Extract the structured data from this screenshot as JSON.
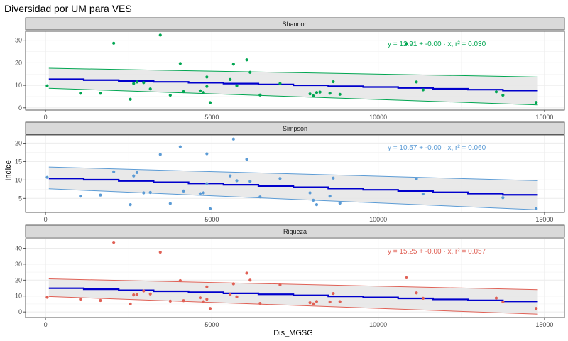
{
  "chart_data": {
    "type": "scatter",
    "title": "Diversidad por UM para VES",
    "xlabel": "Dis_MGSG",
    "ylabel": "Indice",
    "xlim": [
      -600,
      15600
    ],
    "x_ticks": [
      0,
      5000,
      10000,
      15000
    ],
    "x_tick_labels": [
      "0",
      "5000",
      "10000",
      "15000"
    ],
    "grid": true,
    "colors": {
      "fit_line": "#0000cc",
      "ribbon": "#e5e5e5",
      "strip_bg": "#d9d9d9",
      "panel_border": "#333333",
      "grid": "#ebebeb"
    },
    "panels": [
      {
        "name": "Shannon",
        "color": "#00a651",
        "ylim": [
          -1,
          34
        ],
        "y_ticks": [
          0,
          10,
          20,
          30
        ],
        "y_tick_labels": [
          "0",
          "10",
          "20",
          "30"
        ],
        "equation": "y = 12.91 + -0.00 · x,  r² = 0.030",
        "fit": {
          "x": [
            100,
            14800
          ],
          "y": [
            12.91,
            7.5
          ]
        },
        "ci_upper": [
          17.6,
          13.7
        ],
        "ci_lower": [
          8.7,
          1.3
        ],
        "points": [
          [
            50,
            9.8
          ],
          [
            1050,
            6.5
          ],
          [
            1650,
            6.5
          ],
          [
            2050,
            28.7
          ],
          [
            2550,
            3.8
          ],
          [
            2650,
            10.8
          ],
          [
            2750,
            11.5
          ],
          [
            2950,
            11.2
          ],
          [
            3150,
            8.4
          ],
          [
            3450,
            32.3
          ],
          [
            3750,
            5.6
          ],
          [
            4050,
            19.7
          ],
          [
            4150,
            7.2
          ],
          [
            4650,
            7.6
          ],
          [
            4750,
            6.8
          ],
          [
            4850,
            13.7
          ],
          [
            4850,
            9.5
          ],
          [
            4950,
            2.3
          ],
          [
            5550,
            12.6
          ],
          [
            5650,
            19.4
          ],
          [
            5750,
            9.8
          ],
          [
            6050,
            21.3
          ],
          [
            6150,
            15.8
          ],
          [
            6450,
            5.7
          ],
          [
            7050,
            10.8
          ],
          [
            7950,
            6.2
          ],
          [
            8050,
            5.3
          ],
          [
            8150,
            6.8
          ],
          [
            8250,
            7.0
          ],
          [
            8550,
            6.5
          ],
          [
            8650,
            11.6
          ],
          [
            8850,
            6.0
          ],
          [
            10850,
            28.5
          ],
          [
            11150,
            11.5
          ],
          [
            11350,
            8.0
          ],
          [
            13550,
            7.1
          ],
          [
            13750,
            5.6
          ],
          [
            14750,
            2.4
          ]
        ]
      },
      {
        "name": "Simpson",
        "color": "#5b9bd5",
        "ylim": [
          1.2,
          22.2
        ],
        "y_ticks": [
          5,
          10,
          15,
          20
        ],
        "y_tick_labels": [
          "5",
          "10",
          "15",
          "20"
        ],
        "equation": "y = 10.57 + -0.00 · x,  r² = 0.060",
        "fit": {
          "x": [
            100,
            14800
          ],
          "y": [
            10.57,
            5.8
          ]
        },
        "ci_upper": [
          13.5,
          9.8
        ],
        "ci_lower": [
          7.6,
          1.9
        ],
        "points": [
          [
            50,
            10.7
          ],
          [
            1050,
            5.6
          ],
          [
            1650,
            5.9
          ],
          [
            2050,
            12.2
          ],
          [
            2550,
            3.3
          ],
          [
            2650,
            11.1
          ],
          [
            2750,
            12.0
          ],
          [
            2950,
            6.5
          ],
          [
            3150,
            6.6
          ],
          [
            3450,
            16.9
          ],
          [
            3750,
            3.6
          ],
          [
            4050,
            19.0
          ],
          [
            4150,
            7.0
          ],
          [
            4650,
            6.3
          ],
          [
            4750,
            6.5
          ],
          [
            4850,
            17.1
          ],
          [
            4850,
            9.0
          ],
          [
            4950,
            2.2
          ],
          [
            5550,
            11.1
          ],
          [
            5650,
            21.1
          ],
          [
            5750,
            9.8
          ],
          [
            6050,
            15.6
          ],
          [
            6150,
            9.6
          ],
          [
            6450,
            5.4
          ],
          [
            7050,
            10.4
          ],
          [
            7950,
            6.5
          ],
          [
            8050,
            4.5
          ],
          [
            8150,
            3.3
          ],
          [
            8550,
            5.6
          ],
          [
            8650,
            10.5
          ],
          [
            8850,
            3.7
          ],
          [
            11150,
            10.3
          ],
          [
            11350,
            6.2
          ],
          [
            13750,
            5.2
          ],
          [
            14750,
            2.2
          ]
        ]
      },
      {
        "name": "Riqueza",
        "color": "#e06055",
        "ylim": [
          -3.5,
          46
        ],
        "y_ticks": [
          0,
          10,
          20,
          30,
          40
        ],
        "y_tick_labels": [
          "0",
          "10",
          "20",
          "30",
          "40"
        ],
        "equation": "y = 15.25 + -0.00 · x,  r² = 0.057",
        "fit": {
          "x": [
            100,
            14800
          ],
          "y": [
            15.25,
            6.3
          ]
        },
        "ci_upper": [
          20.8,
          14.0
        ],
        "ci_lower": [
          9.7,
          -1.4
        ],
        "points": [
          [
            50,
            9.2
          ],
          [
            1050,
            8.0
          ],
          [
            1650,
            7.2
          ],
          [
            2050,
            43.7
          ],
          [
            2550,
            5.0
          ],
          [
            2650,
            10.7
          ],
          [
            2750,
            11.0
          ],
          [
            2950,
            13.2
          ],
          [
            3150,
            11.3
          ],
          [
            3450,
            37.5
          ],
          [
            3750,
            6.8
          ],
          [
            4050,
            19.7
          ],
          [
            4150,
            7.1
          ],
          [
            4650,
            8.9
          ],
          [
            4750,
            6.5
          ],
          [
            4850,
            15.8
          ],
          [
            4850,
            8.0
          ],
          [
            4950,
            2.2
          ],
          [
            5550,
            10.8
          ],
          [
            5650,
            17.7
          ],
          [
            5750,
            9.5
          ],
          [
            6050,
            24.4
          ],
          [
            6150,
            20.0
          ],
          [
            6450,
            5.4
          ],
          [
            7050,
            17.0
          ],
          [
            7950,
            5.8
          ],
          [
            8050,
            5.1
          ],
          [
            8150,
            6.6
          ],
          [
            8550,
            6.3
          ],
          [
            8650,
            11.6
          ],
          [
            8850,
            6.5
          ],
          [
            10850,
            21.5
          ],
          [
            11150,
            12.0
          ],
          [
            11350,
            8.6
          ],
          [
            13550,
            8.7
          ],
          [
            13750,
            6.3
          ],
          [
            14750,
            2.2
          ]
        ]
      }
    ]
  }
}
